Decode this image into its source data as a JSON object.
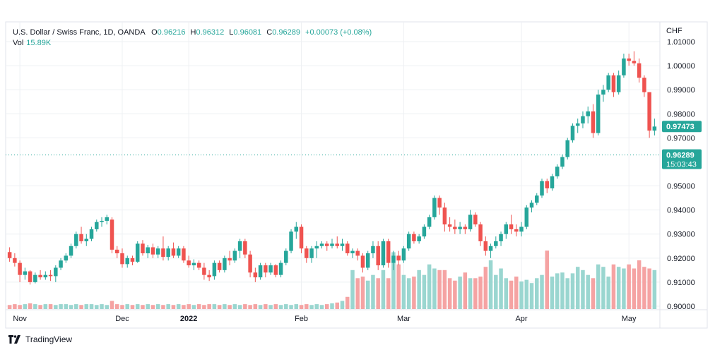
{
  "header": {
    "symbol": "U.S. Dollar / Swiss Franc, 1D, OANDA",
    "o_label": "O",
    "o_value": "0.96216",
    "h_label": "H",
    "h_value": "0.96312",
    "l_label": "L",
    "l_value": "0.96081",
    "c_label": "C",
    "c_value": "0.96289",
    "change": "+0.00073 (+0.08%)",
    "vol_label": "Vol",
    "vol_value": "15.89K"
  },
  "branding": {
    "logo_text": "TradingView",
    "logo_icon": "tradingview-logo-icon"
  },
  "colors": {
    "up": "#26a69a",
    "down": "#ef5350",
    "vol_up": "#9ad6d0",
    "vol_down": "#f5a3a3",
    "grid": "#eef0f3",
    "axis_text": "#131722",
    "dotted": "#26a69a"
  },
  "chart_data": {
    "type": "candlestick",
    "currency": "CHF",
    "ylim": [
      0.9,
      1.01
    ],
    "y_ticks": [
      "1.01000",
      "1.00000",
      "0.99000",
      "0.98000",
      "0.97000",
      "0.95000",
      "0.94000",
      "0.93000",
      "0.92000",
      "0.91000",
      "0.90000"
    ],
    "y_tick_values": [
      1.01,
      1.0,
      0.99,
      0.98,
      0.97,
      0.95,
      0.94,
      0.93,
      0.92,
      0.91,
      0.9
    ],
    "x_ticks": [
      {
        "label": "Nov",
        "bold": false,
        "index": 2
      },
      {
        "label": "Dec",
        "bold": false,
        "index": 22
      },
      {
        "label": "2022",
        "bold": true,
        "index": 35
      },
      {
        "label": "Feb",
        "bold": false,
        "index": 57
      },
      {
        "label": "Mar",
        "bold": false,
        "index": 77
      },
      {
        "label": "Apr",
        "bold": false,
        "index": 100
      },
      {
        "label": "May",
        "bold": false,
        "index": 121
      }
    ],
    "price_labels": [
      {
        "value": 0.97473,
        "text": "0.97473"
      },
      {
        "value": 0.96289,
        "text": "0.96289",
        "sub": "15:03:43"
      }
    ],
    "dotted_line_value": 0.96289,
    "candles": [
      [
        0.9225,
        0.9245,
        0.9185,
        0.92
      ],
      [
        0.92,
        0.922,
        0.9165,
        0.918
      ],
      [
        0.918,
        0.919,
        0.91,
        0.913
      ],
      [
        0.913,
        0.916,
        0.911,
        0.9145
      ],
      [
        0.9145,
        0.915,
        0.909,
        0.91
      ],
      [
        0.91,
        0.914,
        0.9095,
        0.913
      ],
      [
        0.913,
        0.915,
        0.911,
        0.912
      ],
      [
        0.912,
        0.9145,
        0.911,
        0.913
      ],
      [
        0.913,
        0.915,
        0.9105,
        0.9125
      ],
      [
        0.9125,
        0.917,
        0.91,
        0.916
      ],
      [
        0.916,
        0.92,
        0.915,
        0.919
      ],
      [
        0.919,
        0.922,
        0.918,
        0.921
      ],
      [
        0.921,
        0.926,
        0.92,
        0.925
      ],
      [
        0.925,
        0.931,
        0.924,
        0.93
      ],
      [
        0.93,
        0.933,
        0.926,
        0.927
      ],
      [
        0.927,
        0.93,
        0.925,
        0.928
      ],
      [
        0.928,
        0.933,
        0.927,
        0.932
      ],
      [
        0.932,
        0.936,
        0.931,
        0.935
      ],
      [
        0.935,
        0.937,
        0.933,
        0.9355
      ],
      [
        0.9355,
        0.938,
        0.934,
        0.937
      ],
      [
        0.936,
        0.937,
        0.922,
        0.9235
      ],
      [
        0.9235,
        0.925,
        0.92,
        0.922
      ],
      [
        0.922,
        0.924,
        0.916,
        0.9175
      ],
      [
        0.9175,
        0.921,
        0.916,
        0.92
      ],
      [
        0.92,
        0.921,
        0.917,
        0.9185
      ],
      [
        0.9185,
        0.927,
        0.918,
        0.926
      ],
      [
        0.926,
        0.9275,
        0.921,
        0.922
      ],
      [
        0.922,
        0.9255,
        0.92,
        0.9245
      ],
      [
        0.9245,
        0.926,
        0.92,
        0.9215
      ],
      [
        0.9215,
        0.925,
        0.92,
        0.924
      ],
      [
        0.924,
        0.929,
        0.919,
        0.9205
      ],
      [
        0.9205,
        0.925,
        0.919,
        0.924
      ],
      [
        0.924,
        0.9265,
        0.92,
        0.921
      ],
      [
        0.921,
        0.925,
        0.92,
        0.924
      ],
      [
        0.924,
        0.925,
        0.918,
        0.919
      ],
      [
        0.919,
        0.921,
        0.916,
        0.917
      ],
      [
        0.917,
        0.9195,
        0.915,
        0.918
      ],
      [
        0.918,
        0.919,
        0.915,
        0.916
      ],
      [
        0.916,
        0.918,
        0.911,
        0.913
      ],
      [
        0.913,
        0.915,
        0.9105,
        0.912
      ],
      [
        0.9125,
        0.919,
        0.911,
        0.918
      ],
      [
        0.918,
        0.919,
        0.914,
        0.915
      ],
      [
        0.915,
        0.921,
        0.914,
        0.92
      ],
      [
        0.92,
        0.923,
        0.917,
        0.919
      ],
      [
        0.919,
        0.924,
        0.918,
        0.923
      ],
      [
        0.923,
        0.928,
        0.92,
        0.927
      ],
      [
        0.927,
        0.928,
        0.92,
        0.9215
      ],
      [
        0.9215,
        0.923,
        0.912,
        0.914
      ],
      [
        0.914,
        0.916,
        0.91,
        0.912
      ],
      [
        0.912,
        0.918,
        0.911,
        0.917
      ],
      [
        0.917,
        0.918,
        0.912,
        0.914
      ],
      [
        0.914,
        0.918,
        0.913,
        0.917
      ],
      [
        0.917,
        0.9175,
        0.912,
        0.913
      ],
      [
        0.913,
        0.919,
        0.912,
        0.918
      ],
      [
        0.918,
        0.924,
        0.917,
        0.923
      ],
      [
        0.923,
        0.932,
        0.922,
        0.931
      ],
      [
        0.931,
        0.935,
        0.928,
        0.933
      ],
      [
        0.933,
        0.934,
        0.922,
        0.924
      ],
      [
        0.924,
        0.925,
        0.918,
        0.92
      ],
      [
        0.92,
        0.925,
        0.918,
        0.924
      ],
      [
        0.924,
        0.927,
        0.92,
        0.925
      ],
      [
        0.925,
        0.927,
        0.924,
        0.926
      ],
      [
        0.926,
        0.927,
        0.923,
        0.925
      ],
      [
        0.925,
        0.928,
        0.924,
        0.926
      ],
      [
        0.926,
        0.929,
        0.924,
        0.925
      ],
      [
        0.925,
        0.928,
        0.923,
        0.926
      ],
      [
        0.926,
        0.927,
        0.921,
        0.922
      ],
      [
        0.922,
        0.924,
        0.92,
        0.923
      ],
      [
        0.923,
        0.924,
        0.919,
        0.921
      ],
      [
        0.921,
        0.922,
        0.914,
        0.916
      ],
      [
        0.916,
        0.923,
        0.915,
        0.922
      ],
      [
        0.922,
        0.927,
        0.92,
        0.925
      ],
      [
        0.925,
        0.927,
        0.915,
        0.917
      ],
      [
        0.917,
        0.928,
        0.916,
        0.927
      ],
      [
        0.927,
        0.928,
        0.916,
        0.918
      ],
      [
        0.918,
        0.923,
        0.915,
        0.921
      ],
      [
        0.921,
        0.923,
        0.917,
        0.919
      ],
      [
        0.919,
        0.925,
        0.918,
        0.924
      ],
      [
        0.924,
        0.931,
        0.923,
        0.93
      ],
      [
        0.93,
        0.931,
        0.926,
        0.927
      ],
      [
        0.927,
        0.93,
        0.926,
        0.929
      ],
      [
        0.929,
        0.934,
        0.928,
        0.933
      ],
      [
        0.933,
        0.938,
        0.932,
        0.937
      ],
      [
        0.937,
        0.946,
        0.936,
        0.945
      ],
      [
        0.945,
        0.946,
        0.938,
        0.941
      ],
      [
        0.941,
        0.943,
        0.931,
        0.934
      ],
      [
        0.934,
        0.937,
        0.931,
        0.933
      ],
      [
        0.933,
        0.936,
        0.93,
        0.932
      ],
      [
        0.932,
        0.935,
        0.93,
        0.933
      ],
      [
        0.933,
        0.934,
        0.93,
        0.932
      ],
      [
        0.932,
        0.94,
        0.931,
        0.938
      ],
      [
        0.938,
        0.939,
        0.933,
        0.934
      ],
      [
        0.934,
        0.935,
        0.925,
        0.927
      ],
      [
        0.927,
        0.929,
        0.921,
        0.923
      ],
      [
        0.923,
        0.926,
        0.92,
        0.925
      ],
      [
        0.925,
        0.929,
        0.924,
        0.927
      ],
      [
        0.927,
        0.931,
        0.925,
        0.93
      ],
      [
        0.93,
        0.935,
        0.928,
        0.934
      ],
      [
        0.934,
        0.938,
        0.93,
        0.932
      ],
      [
        0.932,
        0.934,
        0.929,
        0.931
      ],
      [
        0.931,
        0.935,
        0.929,
        0.933
      ],
      [
        0.933,
        0.942,
        0.932,
        0.941
      ],
      [
        0.941,
        0.944,
        0.939,
        0.943
      ],
      [
        0.943,
        0.947,
        0.942,
        0.946
      ],
      [
        0.946,
        0.953,
        0.945,
        0.952
      ],
      [
        0.952,
        0.953,
        0.947,
        0.949
      ],
      [
        0.949,
        0.955,
        0.948,
        0.954
      ],
      [
        0.954,
        0.959,
        0.953,
        0.958
      ],
      [
        0.958,
        0.963,
        0.957,
        0.962
      ],
      [
        0.962,
        0.97,
        0.961,
        0.969
      ],
      [
        0.969,
        0.976,
        0.968,
        0.975
      ],
      [
        0.975,
        0.978,
        0.972,
        0.976
      ],
      [
        0.976,
        0.981,
        0.974,
        0.979
      ],
      [
        0.979,
        0.983,
        0.976,
        0.981
      ],
      [
        0.981,
        0.984,
        0.97,
        0.972
      ],
      [
        0.972,
        0.99,
        0.971,
        0.988
      ],
      [
        0.988,
        0.992,
        0.985,
        0.99
      ],
      [
        0.99,
        0.997,
        0.989,
        0.996
      ],
      [
        0.996,
        0.997,
        0.987,
        0.989
      ],
      [
        0.989,
        0.998,
        0.988,
        0.996
      ],
      [
        0.996,
        1.005,
        0.995,
        1.003
      ],
      [
        1.003,
        1.005,
        1.0,
        1.002
      ],
      [
        1.002,
        1.006,
        1.0,
        1.001
      ],
      [
        1.001,
        1.003,
        0.993,
        0.995
      ],
      [
        0.995,
        0.996,
        0.987,
        0.989
      ],
      [
        0.989,
        0.989,
        0.97,
        0.973
      ],
      [
        0.973,
        0.978,
        0.971,
        0.9747
      ]
    ],
    "volumes": [
      0.05,
      0.06,
      0.05,
      0.06,
      0.07,
      0.06,
      0.05,
      0.06,
      0.06,
      0.05,
      0.06,
      0.06,
      0.05,
      0.06,
      0.05,
      0.06,
      0.06,
      0.05,
      0.06,
      0.05,
      0.1,
      0.06,
      0.05,
      0.06,
      0.05,
      0.06,
      0.05,
      0.06,
      0.05,
      0.06,
      0.05,
      0.06,
      0.05,
      0.06,
      0.05,
      0.06,
      0.05,
      0.06,
      0.05,
      0.06,
      0.06,
      0.05,
      0.06,
      0.05,
      0.06,
      0.05,
      0.06,
      0.05,
      0.06,
      0.05,
      0.06,
      0.05,
      0.06,
      0.05,
      0.06,
      0.05,
      0.06,
      0.05,
      0.06,
      0.05,
      0.06,
      0.05,
      0.06,
      0.07,
      0.08,
      0.1,
      0.15,
      0.48,
      0.38,
      0.4,
      0.35,
      0.42,
      0.38,
      0.48,
      0.38,
      0.7,
      0.55,
      0.42,
      0.38,
      0.4,
      0.48,
      0.42,
      0.55,
      0.5,
      0.48,
      0.48,
      0.38,
      0.35,
      0.4,
      0.45,
      0.38,
      0.38,
      0.4,
      0.52,
      0.6,
      0.42,
      0.5,
      0.38,
      0.35,
      0.4,
      0.34,
      0.36,
      0.32,
      0.38,
      0.42,
      0.72,
      0.4,
      0.44,
      0.45,
      0.38,
      0.44,
      0.52,
      0.48,
      0.42,
      0.38,
      0.55,
      0.52,
      0.4,
      0.55,
      0.52,
      0.5,
      0.55,
      0.5,
      0.6,
      0.52,
      0.5,
      0.48
    ]
  }
}
